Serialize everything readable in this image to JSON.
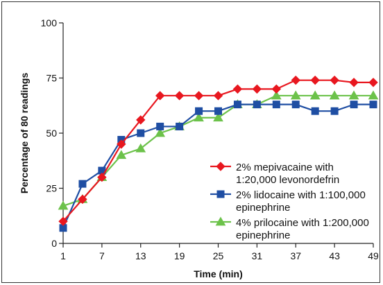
{
  "chart_data": {
    "type": "line",
    "xlabel": "Time (min)",
    "ylabel": "Percentage of 80 readings",
    "xlim": [
      1,
      49
    ],
    "ylim": [
      0,
      100
    ],
    "x_ticks": [
      "1",
      "7",
      "13",
      "19",
      "25",
      "31",
      "37",
      "43",
      "49"
    ],
    "y_ticks": [
      "0",
      "25",
      "50",
      "75",
      "100"
    ],
    "x": [
      1,
      4,
      7,
      10,
      13,
      16,
      19,
      22,
      25,
      28,
      31,
      34,
      37,
      40,
      43,
      46,
      49
    ],
    "legend_position": "center-right",
    "series": [
      {
        "name_lines": [
          "2% mepivacaine with",
          "1:20,000 levonordefrin"
        ],
        "color": "#e8171f",
        "marker": "diamond",
        "values": [
          10,
          20,
          30,
          45,
          56,
          67,
          67,
          67,
          67,
          70,
          70,
          70,
          74,
          74,
          74,
          73,
          73
        ]
      },
      {
        "name_lines": [
          "2% lidocaine with 1:100,000",
          "epinephrine"
        ],
        "color": "#1f4ea3",
        "marker": "square",
        "values": [
          7,
          27,
          33,
          47,
          50,
          53,
          53,
          60,
          60,
          63,
          63,
          63,
          63,
          60,
          60,
          63,
          63
        ]
      },
      {
        "name_lines": [
          "4% prilocaine with 1:200,000",
          "epinephrine"
        ],
        "color": "#6cc24a",
        "marker": "triangle",
        "values": [
          17,
          20,
          30,
          40,
          43,
          50,
          53,
          57,
          57,
          63,
          63,
          67,
          67,
          67,
          67,
          67,
          67
        ]
      }
    ]
  }
}
